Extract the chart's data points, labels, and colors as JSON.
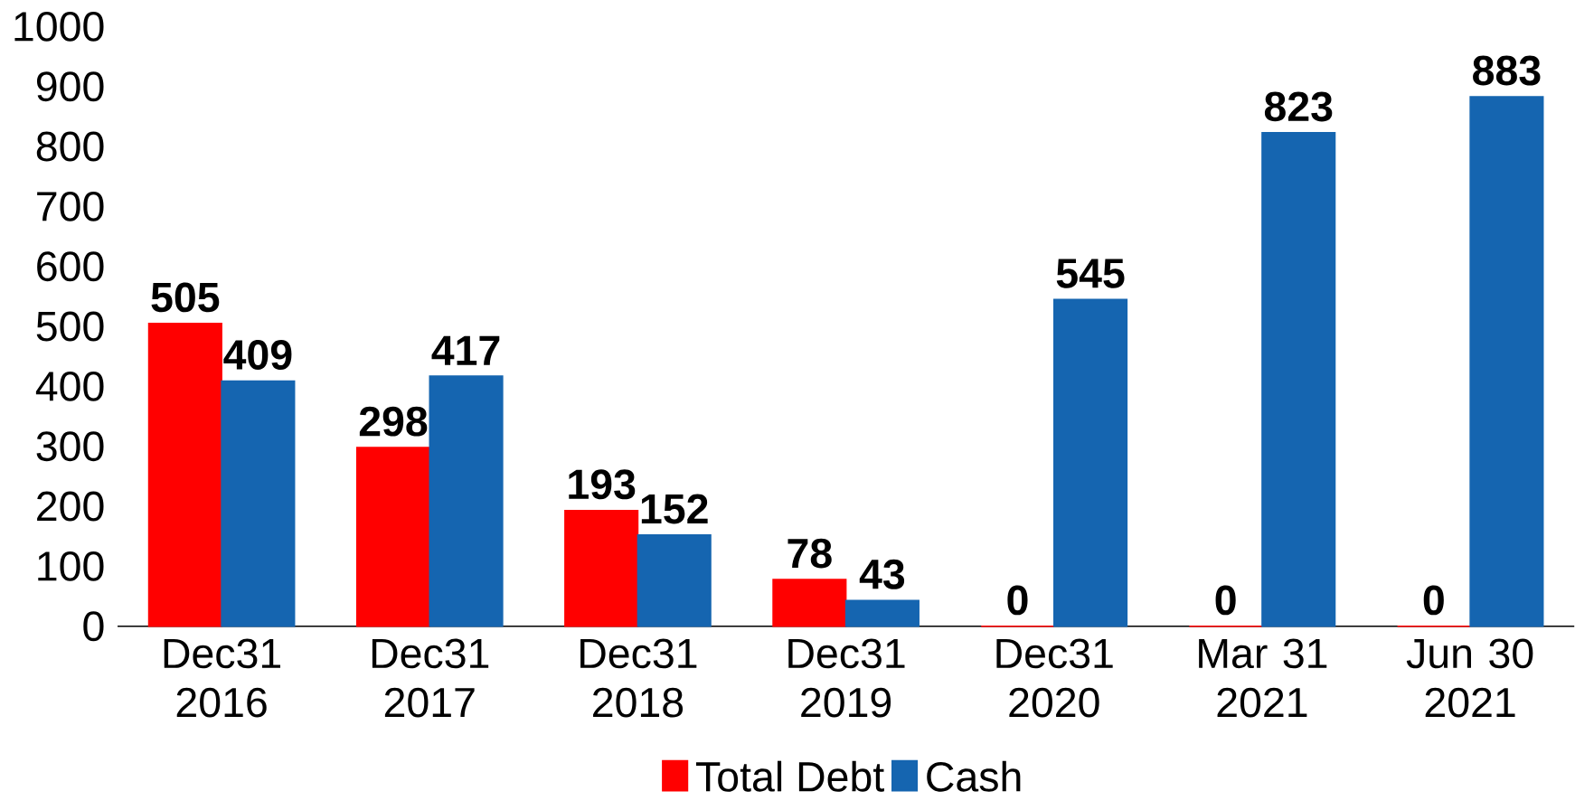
{
  "chart_data": {
    "type": "bar",
    "categories": [
      "Dec31 2016",
      "Dec31 2017",
      "Dec31 2018",
      "Dec31 2019",
      "Dec31 2020",
      "Mar 31 2021",
      "Jun 30 2021"
    ],
    "series": [
      {
        "name": "Total Debt",
        "color": "#ff0000",
        "values": [
          505,
          298,
          193,
          78,
          0,
          0,
          0
        ]
      },
      {
        "name": "Cash",
        "color": "#1565b0",
        "values": [
          409,
          417,
          152,
          43,
          545,
          823,
          883
        ]
      }
    ],
    "ylim": [
      0,
      1000
    ],
    "yticks": [
      0,
      100,
      200,
      300,
      400,
      500,
      600,
      700,
      800,
      900,
      1000
    ],
    "data_labels": true,
    "grid": false,
    "legend": "bottom"
  }
}
